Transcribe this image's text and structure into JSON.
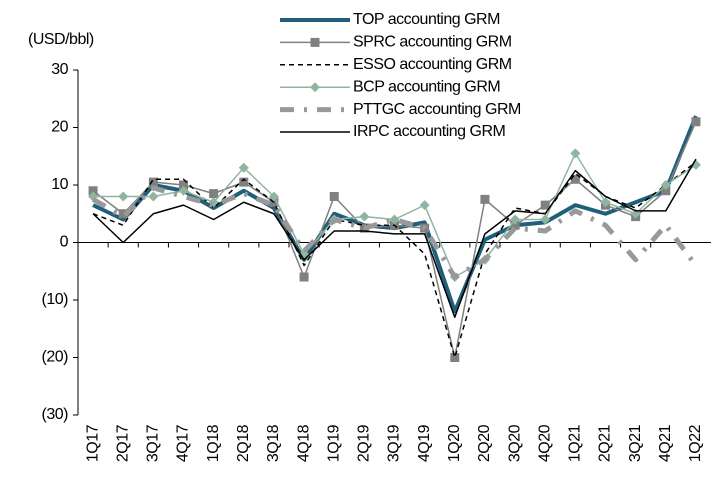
{
  "chart_data": {
    "type": "line",
    "y_axis_label": "(USD/bbl)",
    "categories": [
      "1Q17",
      "2Q17",
      "3Q17",
      "4Q17",
      "1Q18",
      "2Q18",
      "3Q18",
      "4Q18",
      "1Q19",
      "2Q19",
      "3Q19",
      "4Q19",
      "1Q20",
      "2Q20",
      "3Q20",
      "4Q20",
      "1Q21",
      "2Q21",
      "3Q21",
      "4Q21",
      "1Q22"
    ],
    "ylim": [
      -30,
      30
    ],
    "yticks": [
      {
        "value": -30,
        "label": "(30)"
      },
      {
        "value": -20,
        "label": "(20)"
      },
      {
        "value": -10,
        "label": "(10)"
      },
      0,
      10,
      20,
      30
    ],
    "grid": false,
    "legend": "top",
    "series": [
      {
        "name": "TOP accounting GRM",
        "color": "#1f5f7a",
        "line_width": "thick",
        "line_style": "solid",
        "marker": "none",
        "values": [
          6.5,
          4,
          10,
          9,
          6,
          9,
          6,
          -3,
          5,
          3,
          2.5,
          3.5,
          -12,
          0.5,
          3,
          3.5,
          6.5,
          5,
          7,
          9,
          22
        ]
      },
      {
        "name": "SPRC accounting GRM",
        "color": "#808080",
        "line_width": "thin",
        "line_style": "solid",
        "marker": "square",
        "values": [
          9,
          5,
          10.5,
          10,
          8.5,
          10.5,
          7,
          -6,
          8,
          2.5,
          3,
          2.5,
          -20,
          7.5,
          3,
          6.5,
          11,
          6.5,
          4.5,
          9,
          21
        ]
      },
      {
        "name": "ESSO accounting GRM",
        "color": "#000000",
        "line_width": "thin",
        "line_style": "dashed",
        "marker": "none",
        "values": [
          5,
          3,
          11,
          11,
          6,
          11,
          7,
          -4,
          4,
          3,
          3,
          -2,
          -20,
          -2,
          6,
          5,
          12,
          8,
          6,
          10,
          14
        ]
      },
      {
        "name": "BCP accounting GRM",
        "color": "#8fb5a0",
        "line_width": "thin",
        "line_style": "solid",
        "marker": "diamond",
        "values": [
          8,
          8,
          8,
          9,
          7,
          13,
          8,
          -2,
          4,
          4.5,
          4,
          6.5,
          -6,
          -3,
          4,
          4,
          15.5,
          7,
          5,
          10,
          13.5
        ]
      },
      {
        "name": "PTTGC accounting GRM",
        "color": "#999999",
        "line_width": "thick",
        "line_style": "dashdot",
        "marker": "none",
        "values": [
          7.5,
          4.5,
          9.5,
          8,
          6.5,
          8.5,
          6.5,
          -1.5,
          4,
          2.5,
          4,
          2.5,
          -6,
          -3,
          2.5,
          2,
          5.5,
          3,
          -3,
          3,
          -4
        ]
      },
      {
        "name": "IRPC accounting GRM",
        "color": "#000000",
        "line_width": "thin",
        "line_style": "solid",
        "marker": "none",
        "values": [
          5,
          0,
          5,
          6.5,
          4,
          7,
          5,
          -3,
          2,
          2,
          1.5,
          1.5,
          -13,
          1.5,
          5.5,
          5,
          12.5,
          8,
          5.5,
          5.5,
          14.5
        ]
      }
    ]
  }
}
